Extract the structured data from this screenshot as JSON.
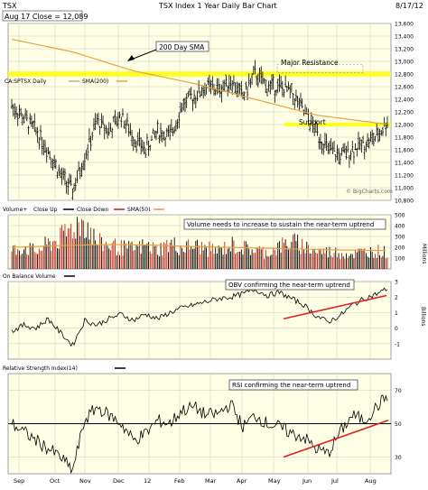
{
  "header": {
    "close_label": "Aug 17 Close = 12,089",
    "title": "TSX Index 1 Year Daily Bar Chart",
    "date": "8/17/12"
  },
  "colors": {
    "panel_bg": "#ffffe6",
    "grid": "#c8c8c8",
    "price_bar": "#000000",
    "sma200": "#e6a33c",
    "sma50": "#e6a33c",
    "highlight": "#ffff00",
    "trend": "#e02020",
    "volume_up": "#000000",
    "volume_down": "#c41e1e"
  },
  "chart_data": [
    {
      "type": "bar",
      "name_label": "CA:SPTSX Daily",
      "legend": [
        {
          "label": "SMA(200)",
          "color": "#e6a33c"
        }
      ],
      "ylim": [
        10800,
        13600
      ],
      "yticks": [
        "13,600",
        "13,400",
        "13,200",
        "13,000",
        "12,800",
        "12,600",
        "12,400",
        "12,200",
        "12,000",
        "11,800",
        "11,600",
        "11,400",
        "11,200",
        "11,000",
        "10,800"
      ],
      "annotations": [
        {
          "text": "200 Day SMA"
        },
        {
          "text": "Major Resistance",
          "level": 12800
        },
        {
          "text": "Support",
          "level": 12000
        }
      ],
      "watermark": "© BigCharts.com",
      "series": [
        {
          "name": "Price",
          "x": [
            0,
            8,
            16,
            24,
            32,
            40,
            48,
            56,
            64,
            72,
            80,
            88,
            96,
            104,
            112,
            120,
            128,
            136,
            144,
            152,
            160,
            168,
            176,
            184,
            192,
            200,
            208,
            216,
            224,
            232,
            240,
            248
          ],
          "values": [
            12300,
            12100,
            11900,
            11600,
            11200,
            10950,
            11500,
            12050,
            11900,
            12150,
            11800,
            11600,
            11900,
            11800,
            12300,
            12450,
            12600,
            12550,
            12700,
            12450,
            12800,
            12600,
            12600,
            12500,
            12200,
            11900,
            11600,
            11500,
            11600,
            11700,
            11800,
            12089
          ]
        },
        {
          "name": "SMA(200)",
          "x": [
            0,
            40,
            80,
            120,
            160,
            200,
            248
          ],
          "values": [
            13350,
            13150,
            12850,
            12650,
            12400,
            12150,
            12000
          ]
        }
      ]
    },
    {
      "type": "bar",
      "legend": [
        {
          "label": "Volume+"
        },
        {
          "label": "Close Up",
          "color": "#000000"
        },
        {
          "label": "Close Down",
          "color": "#c41e1e"
        },
        {
          "label": "SMA(50)",
          "color": "#e6a33c"
        }
      ],
      "ylim": [
        0,
        500
      ],
      "yticks": [
        "500",
        "400",
        "300",
        "200",
        "100"
      ],
      "ylabel": "Millions",
      "annotations": [
        {
          "text": "Volume needs to increase to sustain the near-term uptrend"
        }
      ],
      "sma50_values": [
        200,
        215,
        225,
        220,
        205,
        195,
        185,
        175,
        170
      ],
      "volume_values": [
        180,
        220,
        170,
        250,
        300,
        420,
        480,
        260,
        240,
        210,
        200,
        230,
        190,
        250,
        210,
        230,
        200,
        180,
        240,
        210,
        190,
        160,
        220,
        270,
        230,
        180,
        170,
        160,
        150,
        170,
        180,
        160
      ]
    },
    {
      "type": "line",
      "legend": [
        {
          "label": "On Balance Volume",
          "color": "#000000"
        }
      ],
      "ylim": [
        -2,
        3
      ],
      "yticks": [
        "3",
        "2",
        "1",
        "0",
        "-1"
      ],
      "ylabel": "Billions",
      "annotations": [
        {
          "text": "OBV confirming the near-term uptrend"
        }
      ],
      "series": [
        {
          "name": "On Balance Volume",
          "values": [
            -0.2,
            0.2,
            0.0,
            0.6,
            -0.3,
            -1.1,
            0.5,
            0.2,
            0.6,
            0.9,
            0.5,
            0.9,
            0.6,
            1.0,
            1.3,
            1.5,
            1.7,
            1.9,
            2.0,
            2.2,
            2.5,
            2.1,
            2.3,
            1.9,
            1.5,
            0.8,
            0.4,
            0.8,
            1.5,
            1.9,
            2.2,
            2.6
          ]
        }
      ],
      "trendline": [
        0.6,
        2.1
      ]
    },
    {
      "type": "line",
      "legend": [
        {
          "label": "Relative Strength Index(14)",
          "color": "#000000"
        }
      ],
      "ylim": [
        20,
        80
      ],
      "yticks": [
        "70",
        "50",
        "30"
      ],
      "annotations": [
        {
          "text": "RSI confirming the near-term uptrend"
        }
      ],
      "series": [
        {
          "name": "Relative Strength Index(14)",
          "values": [
            50,
            45,
            40,
            35,
            30,
            22,
            52,
            60,
            55,
            50,
            40,
            44,
            52,
            50,
            58,
            60,
            55,
            56,
            62,
            48,
            55,
            50,
            48,
            44,
            42,
            35,
            32,
            45,
            55,
            52,
            60,
            68
          ]
        }
      ],
      "trendline": [
        30,
        52
      ]
    },
    {
      "type": "bar",
      "categories": [
        "Sep",
        "Oct",
        "Nov",
        "Dec",
        "12",
        "Feb",
        "Mar",
        "Apr",
        "May",
        "Jun",
        "Jul",
        "Aug"
      ]
    }
  ]
}
